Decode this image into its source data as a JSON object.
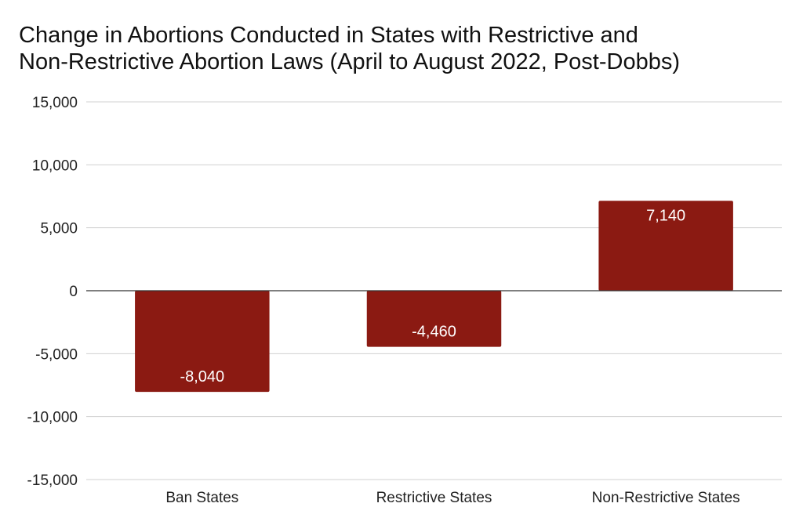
{
  "chart_data": {
    "type": "bar",
    "title_lines": [
      "Change in Abortions Conducted in States with Restrictive and",
      "Non-Restrictive Abortion Laws (April to August 2022, Post-Dobbs)"
    ],
    "categories": [
      "Ban States",
      "Restrictive States",
      "Non-Restrictive States"
    ],
    "values": [
      -8040,
      -4460,
      7140
    ],
    "data_labels": [
      "-8,040",
      "-4,460",
      "7,140"
    ],
    "y_ticks": [
      15000,
      10000,
      5000,
      0,
      -5000,
      -10000,
      -15000
    ],
    "y_tick_labels": [
      "15,000",
      "10,000",
      "5,000",
      "0",
      "-5,000",
      "-10,000",
      "-15,000"
    ],
    "ylim": [
      -15000,
      15000
    ],
    "grid": true,
    "legend": "none",
    "bar_color": "#8b1a12",
    "grid_color": "#d0d0d0",
    "zero_line_color": "#333333",
    "data_label_color": "#ffffff"
  }
}
